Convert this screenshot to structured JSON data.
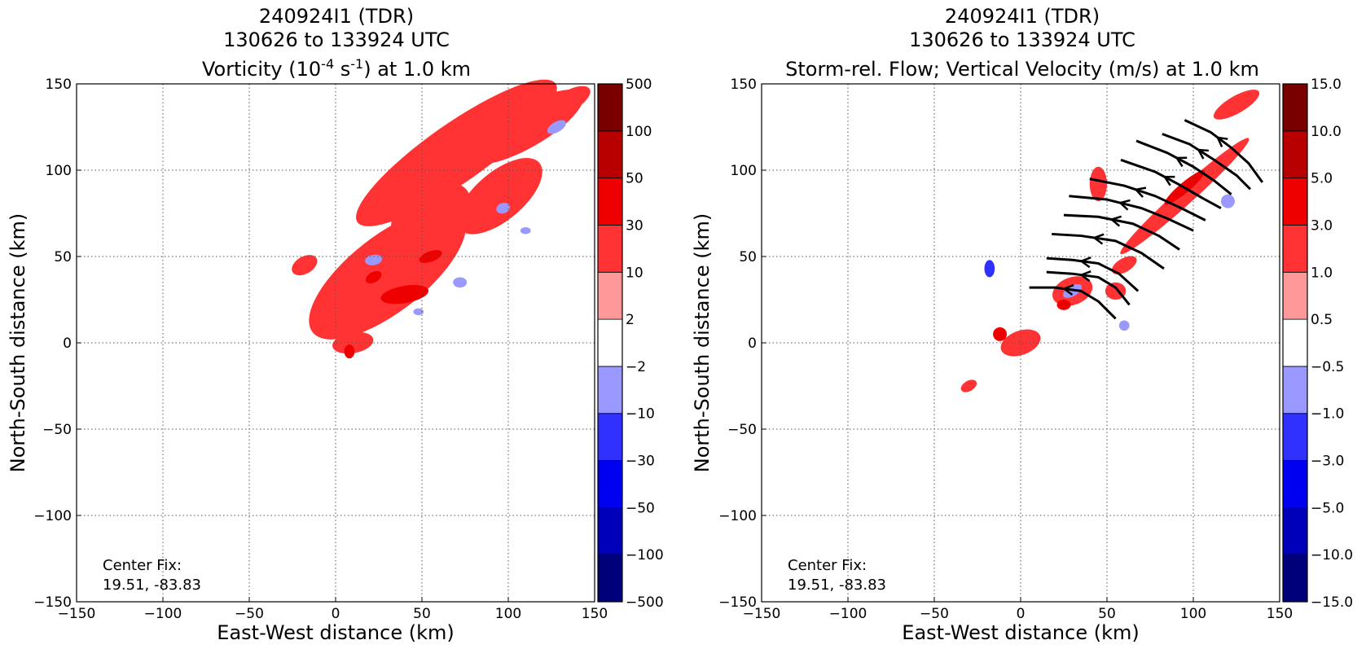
{
  "chart_data": [
    {
      "type": "heatmap",
      "title_lines": [
        "240924I1 (TDR)",
        "130626 to 133924 UTC"
      ],
      "subtitle_parts": {
        "pre": "Vorticity (10",
        "sup1": "-4",
        "mid": " s",
        "sup2": "-1",
        "post": ") at 1.0 km"
      },
      "xlabel": "East-West distance (km)",
      "ylabel": "North-South distance (km)",
      "xlim": [
        -150,
        150
      ],
      "ylim": [
        -150,
        150
      ],
      "xticks": [
        "−150",
        "−100",
        "−50",
        "0",
        "50",
        "100",
        "150"
      ],
      "yticks": [
        "−150",
        "−100",
        "−50",
        "0",
        "50",
        "100",
        "150"
      ],
      "grid": true,
      "annotation": [
        "Center Fix:",
        "19.51, -83.83"
      ],
      "colorbar": {
        "colors": [
          "#00007a",
          "#0000b8",
          "#0000f0",
          "#3030ff",
          "#9999ff",
          "#ffffff",
          "#ff9999",
          "#ff3333",
          "#ee0000",
          "#b80000",
          "#7a0000"
        ],
        "labels": [
          "−500",
          "−100",
          "−50",
          "−30",
          "−10",
          "−2",
          "2",
          "10",
          "30",
          "50",
          "100",
          "500"
        ]
      },
      "features": [
        {
          "level": 2,
          "x": 70,
          "y": 110,
          "rx": 70,
          "ry": 17,
          "rot": 35
        },
        {
          "level": 2,
          "x": 30,
          "y": 40,
          "rx": 55,
          "ry": 22,
          "rot": 38
        },
        {
          "level": 2,
          "x": 110,
          "y": 125,
          "rx": 38,
          "ry": 12,
          "rot": 30
        },
        {
          "level": 2,
          "x": 95,
          "y": 85,
          "rx": 30,
          "ry": 14,
          "rot": 40
        },
        {
          "level": 2,
          "x": 55,
          "y": 75,
          "rx": 25,
          "ry": 15,
          "rot": 30
        },
        {
          "level": 2,
          "x": 10,
          "y": 0,
          "rx": 12,
          "ry": 6,
          "rot": 10
        },
        {
          "level": 2,
          "x": -18,
          "y": 45,
          "rx": 8,
          "ry": 5,
          "rot": 30
        },
        {
          "level": 2,
          "x": 135,
          "y": 140,
          "rx": 14,
          "ry": 6,
          "rot": 30
        },
        {
          "level": 3,
          "x": 40,
          "y": 28,
          "rx": 14,
          "ry": 5,
          "rot": 10
        },
        {
          "level": 3,
          "x": 55,
          "y": 50,
          "rx": 7,
          "ry": 3,
          "rot": 20
        },
        {
          "level": 3,
          "x": 22,
          "y": 38,
          "rx": 5,
          "ry": 3,
          "rot": 30
        },
        {
          "level": 3,
          "x": 8,
          "y": -5,
          "rx": 3,
          "ry": 4,
          "rot": 0
        },
        {
          "level": -1,
          "x": 22,
          "y": 48,
          "rx": 5,
          "ry": 3,
          "rot": 10
        },
        {
          "level": -1,
          "x": 72,
          "y": 35,
          "rx": 4,
          "ry": 3,
          "rot": 0
        },
        {
          "level": -1,
          "x": 97,
          "y": 78,
          "rx": 4,
          "ry": 3,
          "rot": 20
        },
        {
          "level": -1,
          "x": 128,
          "y": 125,
          "rx": 6,
          "ry": 3,
          "rot": 30
        },
        {
          "level": -1,
          "x": 110,
          "y": 65,
          "rx": 3,
          "ry": 2,
          "rot": 0
        },
        {
          "level": -1,
          "x": 48,
          "y": 18,
          "rx": 3,
          "ry": 2,
          "rot": 0
        }
      ]
    },
    {
      "type": "heatmap",
      "title_lines": [
        "240924I1 (TDR)",
        "130626 to 133924 UTC"
      ],
      "subtitle_text": "Storm-rel. Flow; Vertical Velocity (m/s) at 1.0 km",
      "xlabel": "East-West distance (km)",
      "ylabel": "North-South distance (km)",
      "xlim": [
        -150,
        150
      ],
      "ylim": [
        -150,
        150
      ],
      "xticks": [
        "−150",
        "−100",
        "−50",
        "0",
        "50",
        "100",
        "150"
      ],
      "yticks": [
        "−150",
        "−100",
        "−50",
        "0",
        "50",
        "100",
        "150"
      ],
      "grid": true,
      "annotation": [
        "Center Fix:",
        "19.51, -83.83"
      ],
      "colorbar": {
        "colors": [
          "#00007a",
          "#0000b8",
          "#0000f0",
          "#3030ff",
          "#9999ff",
          "#ffffff",
          "#ff9999",
          "#ff3333",
          "#ee0000",
          "#b80000",
          "#7a0000"
        ],
        "labels": [
          "−15.0",
          "−10.0",
          "−5.0",
          "−3.0",
          "−1.0",
          "−0.5",
          "0.5",
          "1.0",
          "3.0",
          "5.0",
          "10.0",
          "15.0"
        ]
      },
      "features": [
        {
          "level": 2,
          "x": 95,
          "y": 85,
          "rx": 50,
          "ry": 5,
          "rot": 42
        },
        {
          "level": 2,
          "x": 125,
          "y": 138,
          "rx": 15,
          "ry": 5,
          "rot": 30
        },
        {
          "level": 2,
          "x": 30,
          "y": 30,
          "rx": 12,
          "ry": 8,
          "rot": 20
        },
        {
          "level": 2,
          "x": 60,
          "y": 45,
          "rx": 8,
          "ry": 4,
          "rot": 30
        },
        {
          "level": 2,
          "x": 55,
          "y": 30,
          "rx": 6,
          "ry": 5,
          "rot": 0
        },
        {
          "level": 2,
          "x": 0,
          "y": 0,
          "rx": 12,
          "ry": 7,
          "rot": 20
        },
        {
          "level": 2,
          "x": -30,
          "y": -25,
          "rx": 5,
          "ry": 3,
          "rot": 30
        },
        {
          "level": 2,
          "x": 45,
          "y": 92,
          "rx": 5,
          "ry": 10,
          "rot": 0
        },
        {
          "level": 3,
          "x": 95,
          "y": 90,
          "rx": 15,
          "ry": 3,
          "rot": 40
        },
        {
          "level": 3,
          "x": 25,
          "y": 22,
          "rx": 4,
          "ry": 3,
          "rot": 0
        },
        {
          "level": 3,
          "x": -12,
          "y": 5,
          "rx": 4,
          "ry": 4,
          "rot": 0
        },
        {
          "level": -1,
          "x": 30,
          "y": 30,
          "rx": 6,
          "ry": 3,
          "rot": 30
        },
        {
          "level": -2,
          "x": -18,
          "y": 43,
          "rx": 3,
          "ry": 5,
          "rot": 0
        },
        {
          "level": -1,
          "x": 120,
          "y": 82,
          "rx": 4,
          "ry": 4,
          "rot": 0
        },
        {
          "level": -1,
          "x": 60,
          "y": 10,
          "rx": 3,
          "ry": 3,
          "rot": 0
        }
      ],
      "streamlines": [
        [
          [
            5,
            32
          ],
          [
            20,
            32
          ],
          [
            35,
            30
          ],
          [
            45,
            24
          ],
          [
            55,
            14
          ]
        ],
        [
          [
            15,
            41
          ],
          [
            30,
            40
          ],
          [
            45,
            38
          ],
          [
            55,
            32
          ],
          [
            63,
            22
          ]
        ],
        [
          [
            15,
            49
          ],
          [
            30,
            48
          ],
          [
            45,
            46
          ],
          [
            57,
            40
          ],
          [
            68,
            30
          ]
        ],
        [
          [
            18,
            63
          ],
          [
            35,
            62
          ],
          [
            55,
            59
          ],
          [
            70,
            52
          ],
          [
            83,
            43
          ]
        ],
        [
          [
            25,
            74
          ],
          [
            45,
            73
          ],
          [
            65,
            69
          ],
          [
            80,
            62
          ],
          [
            92,
            54
          ]
        ],
        [
          [
            28,
            85
          ],
          [
            50,
            83
          ],
          [
            70,
            78
          ],
          [
            85,
            72
          ],
          [
            100,
            65
          ]
        ],
        [
          [
            40,
            95
          ],
          [
            60,
            91
          ],
          [
            78,
            85
          ],
          [
            93,
            78
          ],
          [
            107,
            71
          ]
        ],
        [
          [
            58,
            106
          ],
          [
            78,
            99
          ],
          [
            93,
            91
          ],
          [
            105,
            84
          ],
          [
            116,
            78
          ]
        ],
        [
          [
            67,
            117
          ],
          [
            85,
            110
          ],
          [
            100,
            102
          ],
          [
            112,
            94
          ],
          [
            122,
            86
          ]
        ],
        [
          [
            82,
            121
          ],
          [
            98,
            115
          ],
          [
            112,
            106
          ],
          [
            125,
            97
          ],
          [
            133,
            89
          ]
        ],
        [
          [
            95,
            129
          ],
          [
            110,
            122
          ],
          [
            122,
            113
          ],
          [
            132,
            104
          ],
          [
            140,
            93
          ]
        ]
      ]
    }
  ]
}
